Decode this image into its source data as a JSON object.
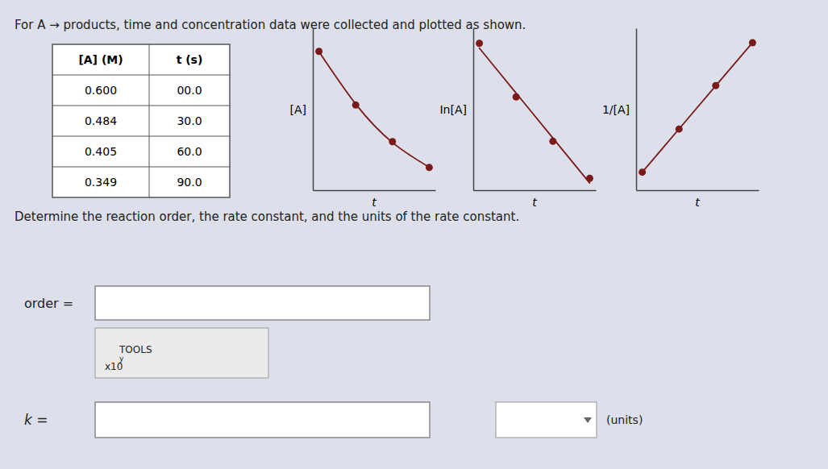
{
  "title": "For A → products, time and concentration data were collected and plotted as shown.",
  "table": {
    "columns": [
      "[A] (M)",
      "t (s)"
    ],
    "rows": [
      [
        "0.600",
        "00.0"
      ],
      [
        "0.484",
        "30.0"
      ],
      [
        "0.405",
        "60.0"
      ],
      [
        "0.349",
        "90.0"
      ]
    ]
  },
  "annotations": [
    "Determine the reaction order, the rate constant, and the units of the rate constant.",
    "order =",
    "TOOLS",
    "y",
    "x10",
    "k =",
    "(units)"
  ],
  "chart_data": [
    {
      "type": "scatter",
      "x": [
        0,
        30,
        60,
        90
      ],
      "x_label": "t",
      "y_label": "[A]",
      "xlim": [
        -5,
        95
      ],
      "ylim": [
        0.3,
        0.65
      ],
      "xticks": [],
      "yticks": [],
      "tick_labels": false,
      "grid": false,
      "series": [
        {
          "type": "scatter",
          "marker": "circle",
          "color": "#7b1a1a",
          "values": [
            0.6,
            0.484,
            0.405,
            0.349
          ]
        },
        {
          "type": "line",
          "line_style": "solid",
          "color": "#7b1a1a",
          "values": [
            0.5993,
            0.4861,
            0.4029,
            0.3497
          ]
        }
      ]
    },
    {
      "type": "scatter",
      "x": [
        0,
        30,
        60,
        90
      ],
      "x_label": "t",
      "y_label": "In[A]",
      "xlim": [
        -5,
        95
      ],
      "ylim": [
        -1.1,
        -0.45
      ],
      "xticks": [],
      "yticks": [],
      "tick_labels": false,
      "grid": false,
      "series": [
        {
          "type": "scatter",
          "marker": "circle",
          "color": "#7b1a1a",
          "values": [
            -0.5108,
            -0.7257,
            -0.9039,
            -1.0527
          ]
        },
        {
          "type": "line",
          "line_style": "solid",
          "color": "#7b1a1a",
          "values": [
            -0.5302,
            -0.7106,
            -0.891,
            -1.0713
          ]
        }
      ]
    },
    {
      "type": "scatter",
      "x": [
        0,
        30,
        60,
        90
      ],
      "x_label": "t",
      "y_label": "1/[A]",
      "xlim": [
        -5,
        95
      ],
      "ylim": [
        1.5,
        3.0
      ],
      "xticks": [],
      "yticks": [],
      "tick_labels": false,
      "grid": false,
      "series": [
        {
          "type": "scatter",
          "marker": "circle",
          "color": "#7b1a1a",
          "values": [
            1.6667,
            2.0661,
            2.4691,
            2.8653
          ]
        },
        {
          "type": "line",
          "line_style": "solid",
          "color": "#7b1a1a",
          "values": [
            1.667,
            2.0669,
            2.4668,
            2.8668
          ]
        }
      ]
    }
  ]
}
